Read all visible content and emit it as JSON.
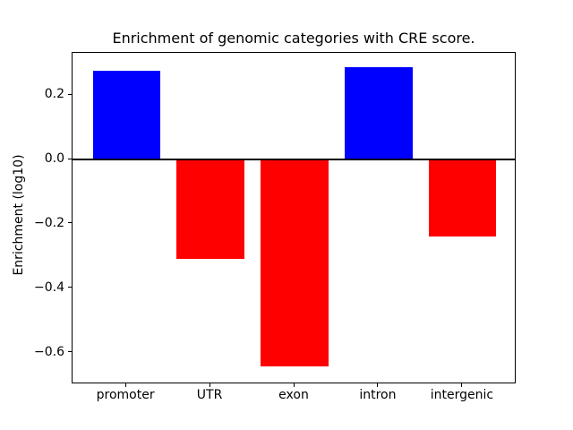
{
  "chart_data": {
    "type": "bar",
    "title": "Enrichment of genomic categories with CRE score.",
    "xlabel": "",
    "ylabel": "Enrichment (log10)",
    "categories": [
      "promoter",
      "UTR",
      "exon",
      "intron",
      "intergenic"
    ],
    "values": [
      0.274,
      -0.31,
      -0.645,
      0.285,
      -0.24
    ],
    "bar_colors": [
      "#0000ff",
      "#ff0000",
      "#ff0000",
      "#0000ff",
      "#ff0000"
    ],
    "positive_color": "#0000ff",
    "negative_color": "#ff0000",
    "yticks": [
      0.2,
      0.0,
      -0.2,
      -0.4,
      -0.6
    ],
    "ytick_labels": [
      "0.2",
      "0.0",
      "−0.2",
      "−0.4",
      "−0.6"
    ],
    "ylim": [
      -0.7,
      0.33
    ],
    "xlim": [
      -0.64,
      4.64
    ],
    "bar_width": 0.8,
    "zero_line": true,
    "grid": false,
    "legend": null,
    "background_color": "#ffffff",
    "axis_color": "#000000"
  }
}
